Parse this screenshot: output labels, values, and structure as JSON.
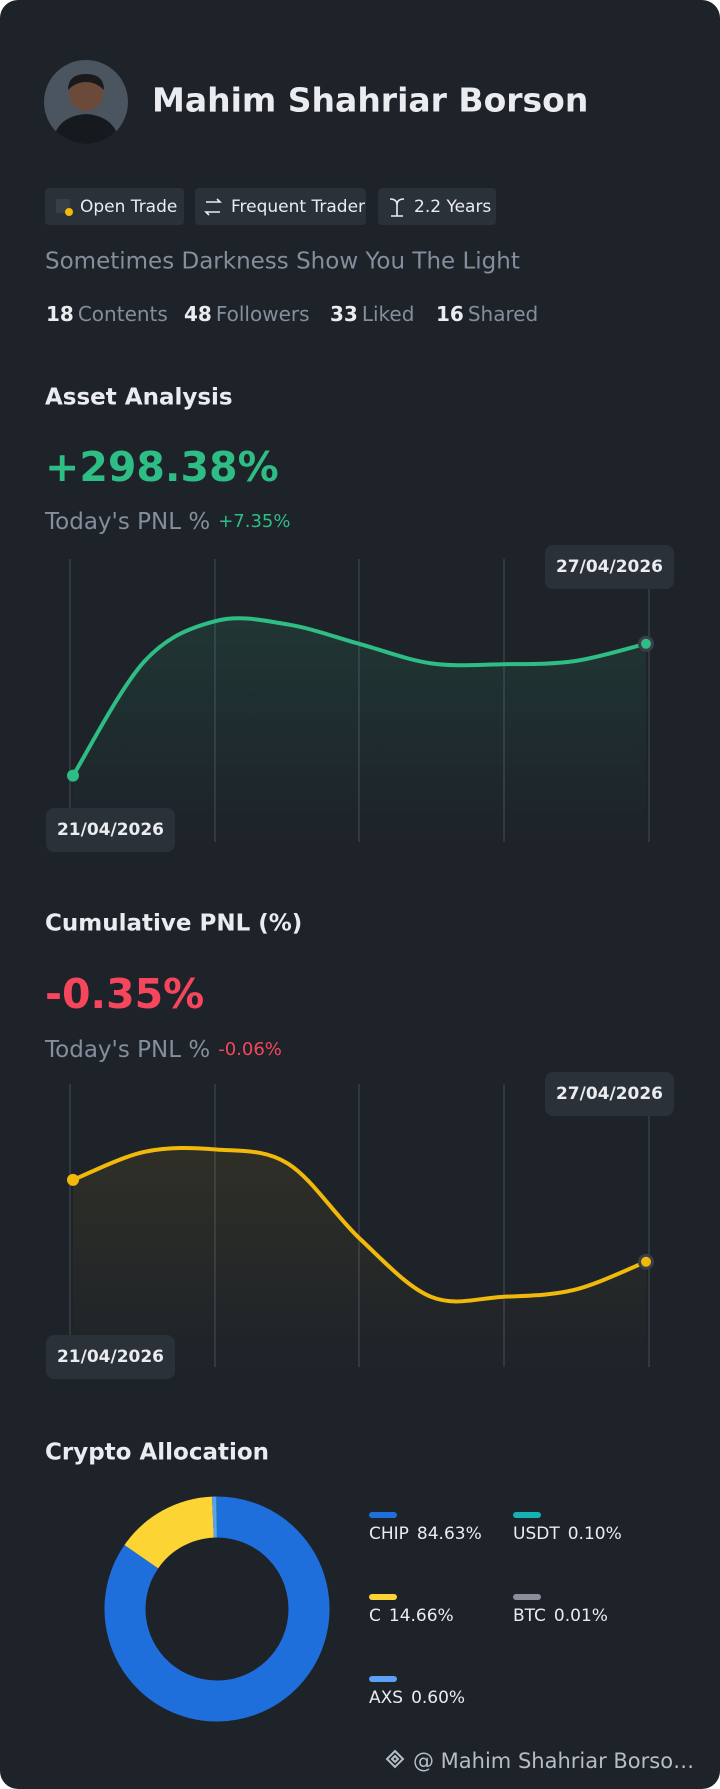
{
  "profile": {
    "name": "Mahim Shahriar Borson",
    "badges": [
      "Open Trade",
      "Frequent Trader",
      "2.2 Years"
    ],
    "bio": "Sometimes Darkness Show You The Light",
    "stats": [
      {
        "value": 18,
        "label": "Contents"
      },
      {
        "value": 48,
        "label": "Followers"
      },
      {
        "value": 33,
        "label": "Liked"
      },
      {
        "value": 16,
        "label": "Shared"
      }
    ]
  },
  "chart_data": [
    {
      "type": "line",
      "title": "Asset Analysis",
      "headline": "+298.38%",
      "pnl_label": "Today's PNL %",
      "pnl_value": "+7.35%",
      "categories": [
        "21/04/2026",
        null,
        null,
        null,
        null,
        null,
        null,
        null,
        "27/04/2026"
      ],
      "values": [
        0,
        259,
        350,
        342,
        298,
        254,
        252,
        259,
        298.38
      ],
      "color": "#2ebd85",
      "ylim": [
        -150,
        490
      ]
    },
    {
      "type": "line",
      "title": "Cumulative PNL (%)",
      "headline": "-0.35%",
      "pnl_label": "Today's PNL %",
      "pnl_value": "-0.06%",
      "categories": [
        "21/04/2026",
        null,
        null,
        null,
        null,
        null,
        null,
        null,
        "27/04/2026"
      ],
      "values": [
        0,
        0.12,
        0.13,
        0.07,
        -0.25,
        -0.5,
        -0.5,
        -0.47,
        -0.35
      ],
      "color": "#f0b90b",
      "ylim": [
        -0.8,
        0.41
      ]
    },
    {
      "type": "donut",
      "title": "Crypto Allocation",
      "categories": [
        "CHIP",
        "C",
        "AXS",
        "USDT",
        "BTC"
      ],
      "values": [
        84.63,
        14.66,
        0.6,
        0.1,
        0.01
      ],
      "value_labels": [
        "84.63%",
        "14.66%",
        "0.60%",
        "0.10%",
        "0.01%"
      ],
      "colors": [
        "#1e6fdc",
        "#fcd535",
        "#5aa0f5",
        "#16b1b4",
        "#8a8f99"
      ]
    }
  ],
  "footer": "@ Mahim Shahriar Borso…"
}
